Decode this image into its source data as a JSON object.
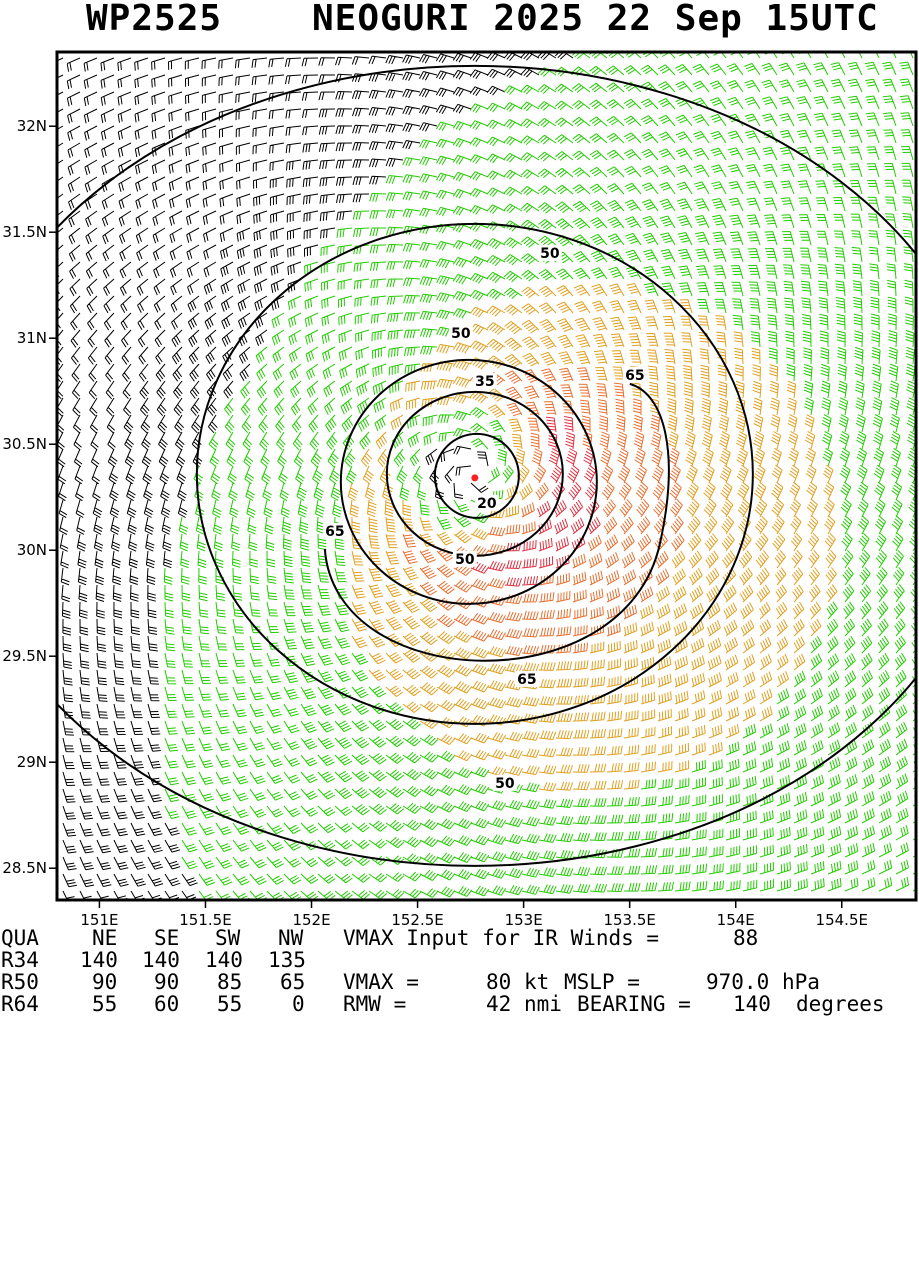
{
  "header": {
    "storm_id": "WP2525",
    "title": "NEOGURI 2025 22 Sep 15UTC"
  },
  "map": {
    "lat_ticks": [
      "32N",
      "31.5N",
      "31N",
      "30.5N",
      "30N",
      "29.5N",
      "29N",
      "28.5N"
    ],
    "lon_ticks": [
      "151E",
      "151.5E",
      "152E",
      "152.5E",
      "153E",
      "153.5E",
      "154E",
      "154.5E"
    ],
    "lat_range": [
      28.35,
      32.35
    ],
    "lon_range": [
      150.8,
      154.85
    ],
    "center": {
      "lat": 30.36,
      "lon": 152.77
    },
    "wind_contour_labels": [
      "20",
      "35",
      "50",
      "50",
      "50",
      "65",
      "65",
      "65",
      "50"
    ],
    "wind_colors": {
      "lt_34": "#000000",
      "34_to_50": "#22cc00",
      "50_to_64": "#e0a020",
      "64_to_80": "#e87030",
      "gt_80": "#e03040"
    }
  },
  "info_table": {
    "headers": [
      "QUA",
      "NE",
      "SE",
      "SW",
      "NW"
    ],
    "rows": [
      {
        "label": "R34",
        "values": [
          "140",
          "140",
          "140",
          "135"
        ]
      },
      {
        "label": "R50",
        "values": [
          "90",
          "90",
          "85",
          "65"
        ]
      },
      {
        "label": "R64",
        "values": [
          "55",
          "60",
          "55",
          "0"
        ]
      }
    ],
    "vmax_input_label": "VMAX Input for IR Winds =",
    "vmax_input_value": "88",
    "vmax_label": "VMAX =",
    "vmax_value": "80",
    "vmax_unit": "kt",
    "mslp_label": "MSLP =",
    "mslp_value": "970.0",
    "mslp_unit": "hPa",
    "rmw_label": "RMW =",
    "rmw_value": "42",
    "rmw_unit": "nmi",
    "bearing_label": "BEARING =",
    "bearing_value": "140",
    "bearing_unit": "degrees"
  }
}
